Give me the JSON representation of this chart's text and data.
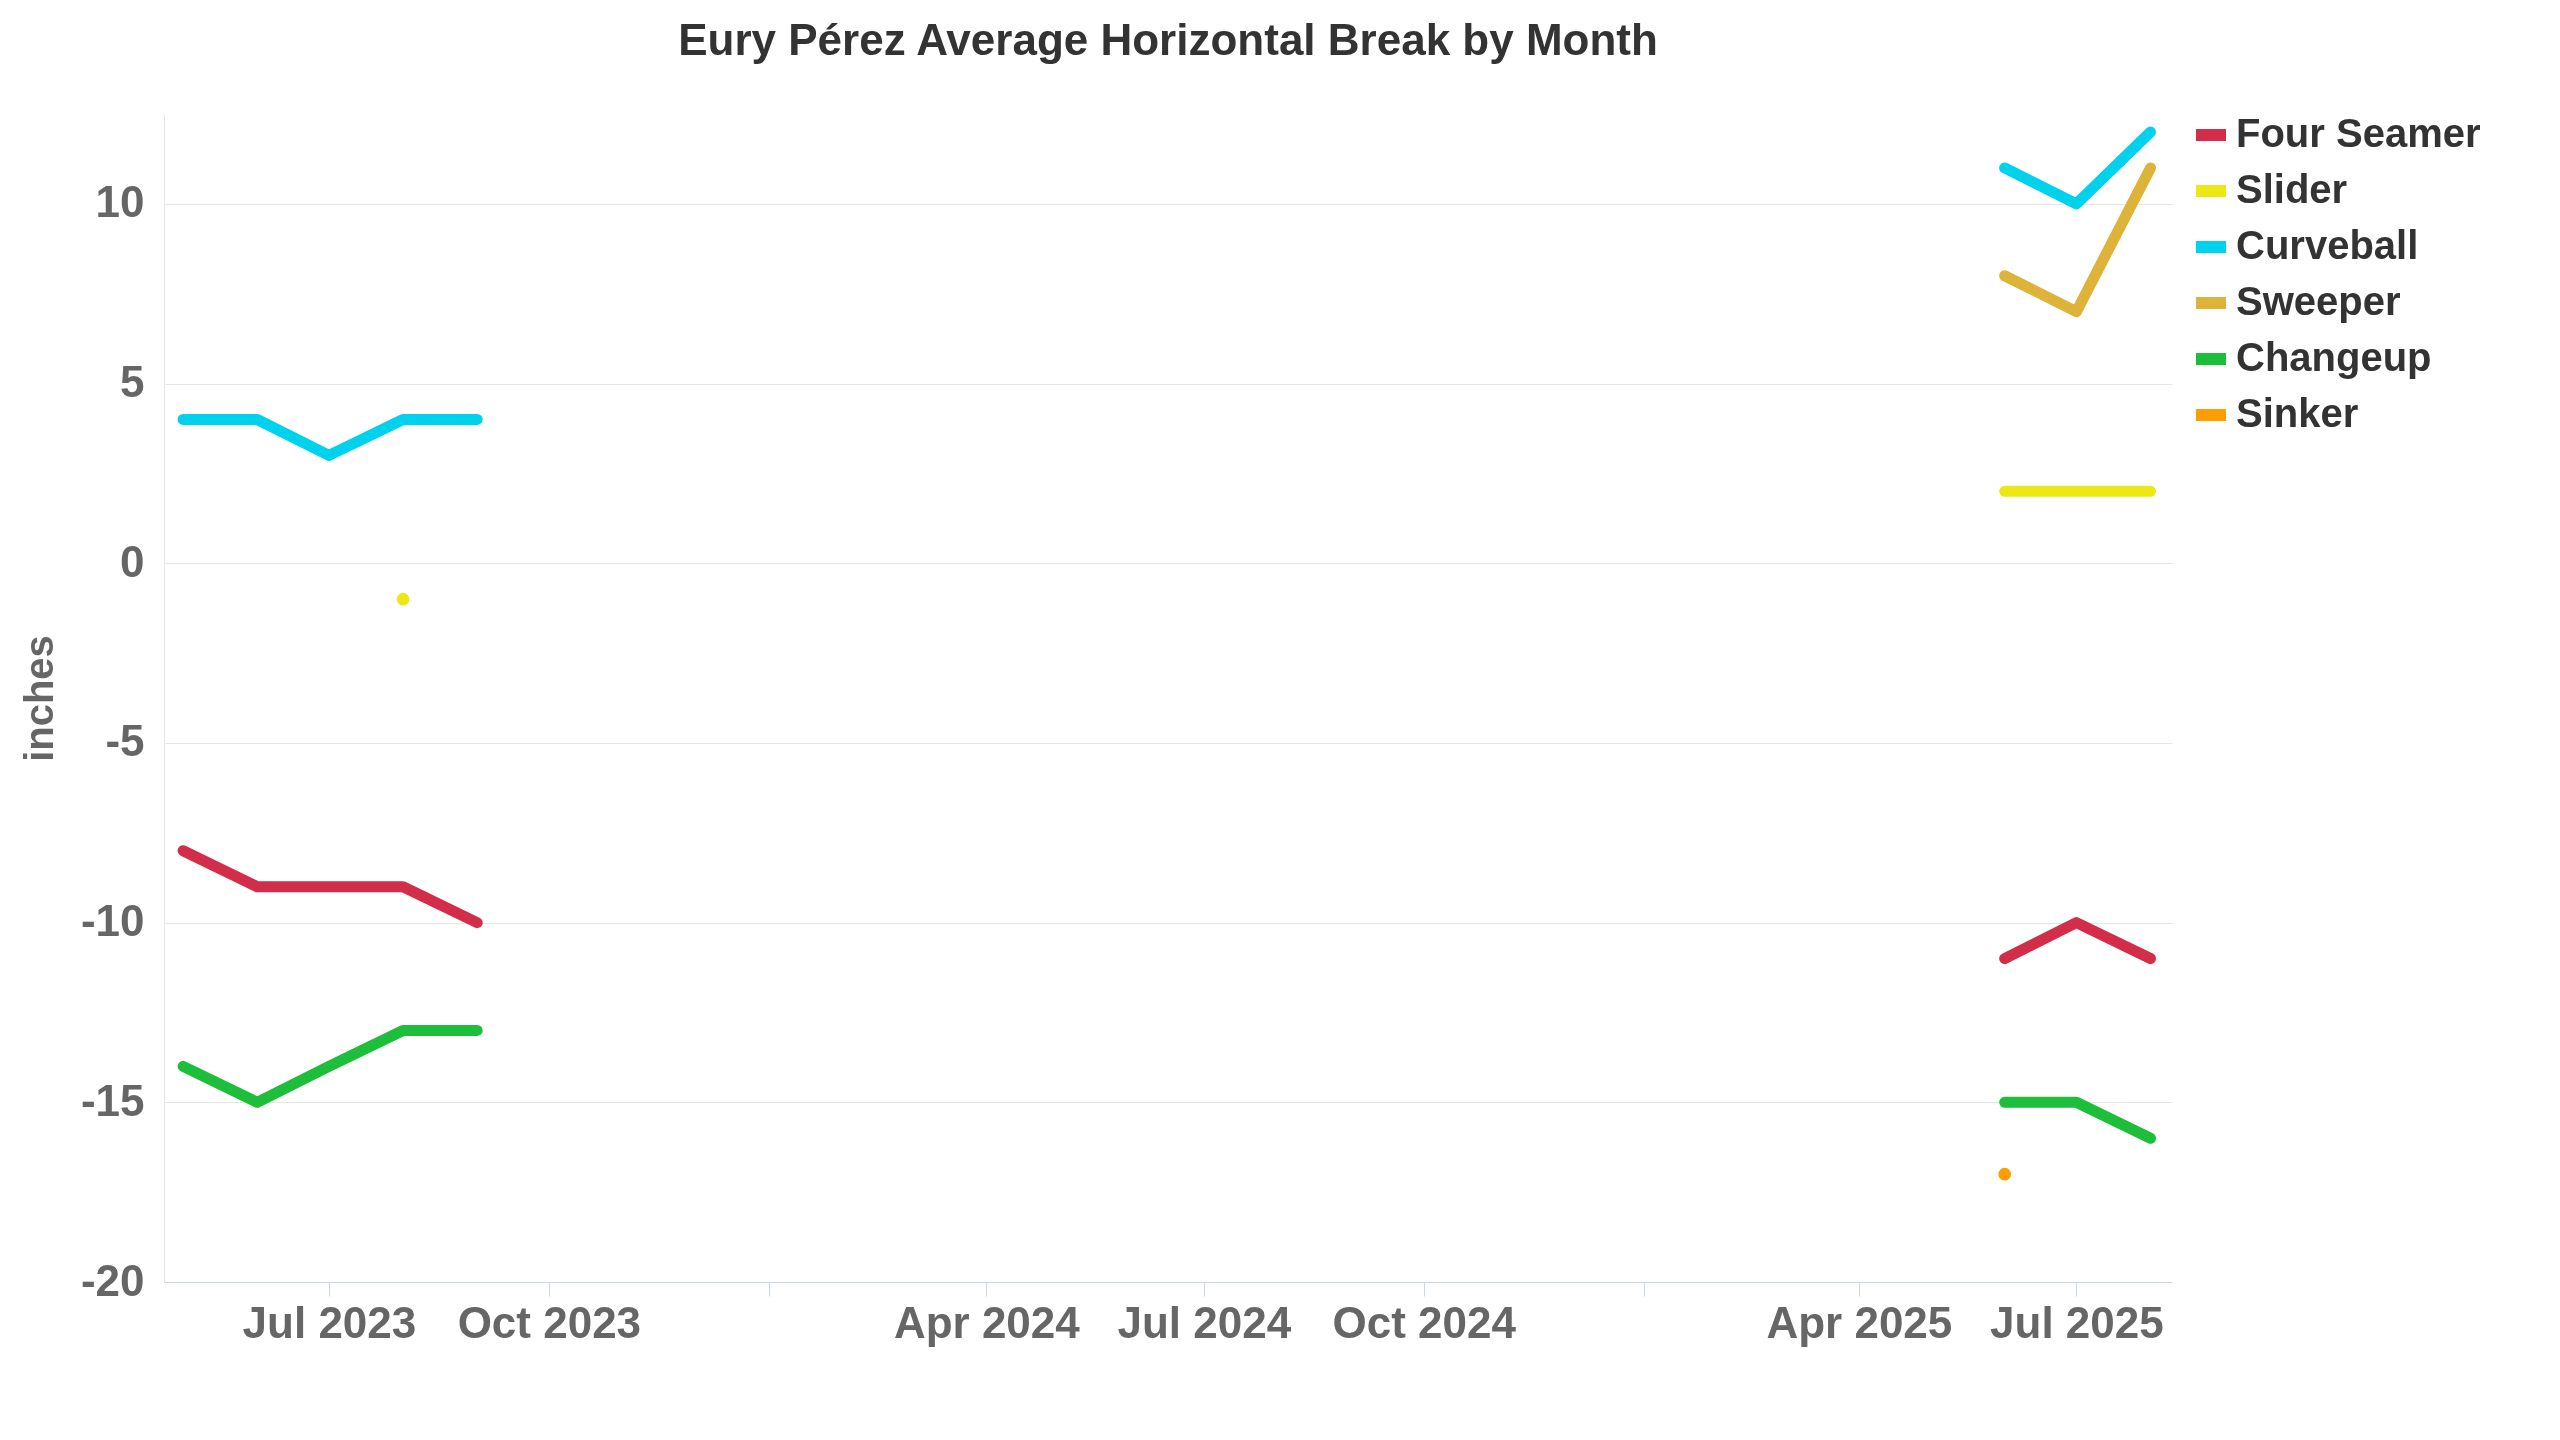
{
  "chart_data": {
    "type": "line",
    "title": "Eury Pérez Average Horizontal Break by Month",
    "ylabel": "inches",
    "x": [
      "2023-05",
      "2023-06",
      "2023-07",
      "2023-08",
      "2023-09",
      "2025-06",
      "2025-07",
      "2025-08"
    ],
    "series": [
      {
        "name": "Four Seamer",
        "color": "#d22d49",
        "values": [
          -8,
          -9,
          -9,
          -9,
          -10,
          -11,
          -10,
          -11
        ]
      },
      {
        "name": "Slider",
        "color": "#eee716",
        "values": [
          null,
          null,
          null,
          -1,
          null,
          2,
          2,
          2
        ]
      },
      {
        "name": "Curveball",
        "color": "#00d1ed",
        "values": [
          4,
          4,
          3,
          4,
          4,
          11,
          10,
          12
        ]
      },
      {
        "name": "Sweeper",
        "color": "#ddb33a",
        "values": [
          null,
          null,
          null,
          null,
          null,
          8,
          7,
          11
        ]
      },
      {
        "name": "Changeup",
        "color": "#1dbe3a",
        "values": [
          -14,
          -15,
          -14,
          -13,
          -13,
          -15,
          -15,
          -16
        ]
      },
      {
        "name": "Sinker",
        "color": "#fe9d00",
        "marker": "circle",
        "values": [
          null,
          null,
          null,
          null,
          null,
          -17,
          null,
          null
        ]
      }
    ],
    "xlim": [
      "2023-04-23",
      "2025-08-10"
    ],
    "xticks": [
      {
        "value": "2023-07",
        "label": "Jul 2023"
      },
      {
        "value": "2023-10",
        "label": "Oct 2023"
      },
      {
        "value": "2024-01",
        "label": null
      },
      {
        "value": "2024-04",
        "label": "Apr 2024"
      },
      {
        "value": "2024-07",
        "label": "Jul 2024"
      },
      {
        "value": "2024-10",
        "label": "Oct 2024"
      },
      {
        "value": "2025-01",
        "label": null
      },
      {
        "value": "2025-04",
        "label": "Apr 2025"
      },
      {
        "value": "2025-07",
        "label": "Jul 2025"
      }
    ],
    "ylim": [
      -20,
      12.5
    ],
    "yticks": [
      -20,
      -15,
      -10,
      -5,
      0,
      5,
      10
    ],
    "grid": "y",
    "legend": "right"
  }
}
